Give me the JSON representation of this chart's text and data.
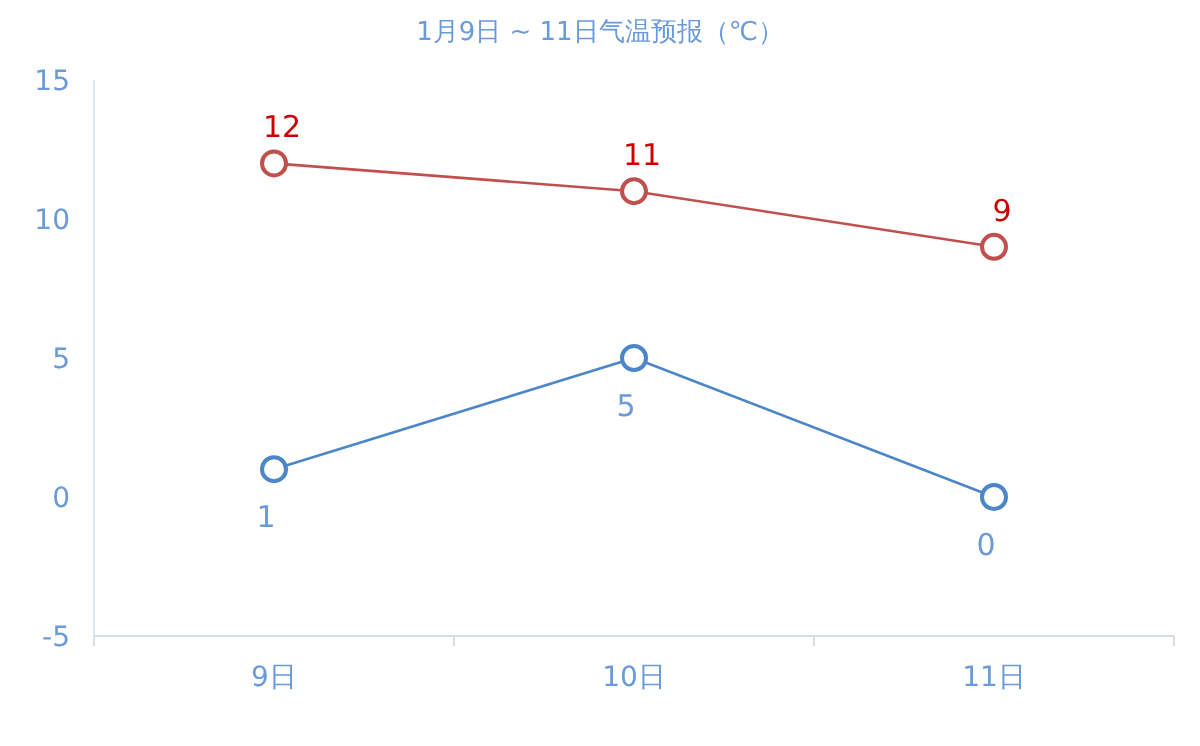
{
  "chart_data": {
    "type": "line",
    "title": "1月9日 ~ 11日气温预报（℃）",
    "categories": [
      "9日",
      "10日",
      "11日"
    ],
    "series": [
      {
        "color": "#c0504d",
        "values": [
          12,
          11,
          9
        ]
      },
      {
        "color": "#4a86c8",
        "values": [
          1,
          5,
          0
        ]
      }
    ],
    "ylim": [
      -5,
      15
    ],
    "yticks": [
      -5,
      0,
      5,
      10,
      15
    ],
    "marker": "circle",
    "data_labels": true
  }
}
